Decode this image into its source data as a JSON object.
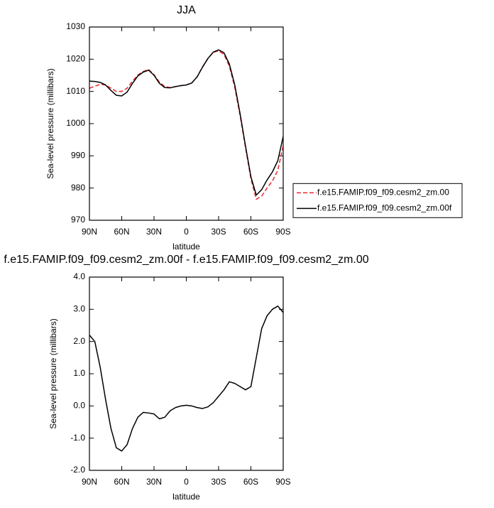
{
  "chart_data": [
    {
      "type": "line",
      "title": "JJA",
      "xlabel": "latitude",
      "ylabel": "Sea-level pressure (millibars)",
      "x": [
        90,
        85,
        80,
        75,
        70,
        65,
        60,
        55,
        50,
        45,
        40,
        35,
        30,
        25,
        20,
        15,
        10,
        5,
        0,
        -5,
        -10,
        -15,
        -20,
        -25,
        -30,
        -35,
        -40,
        -45,
        -50,
        -55,
        -60,
        -65,
        -70,
        -75,
        -80,
        -85,
        -90
      ],
      "xlim": [
        90,
        -90
      ],
      "xticks": [
        {
          "value": 90,
          "label": "90N"
        },
        {
          "value": 60,
          "label": "60N"
        },
        {
          "value": 30,
          "label": "30N"
        },
        0,
        {
          "value": -30,
          "label": "30S"
        },
        {
          "value": -60,
          "label": "60S"
        },
        {
          "value": -90,
          "label": "90S"
        }
      ],
      "ylim": [
        970,
        1030
      ],
      "yticks": [
        970,
        980,
        990,
        1000,
        1010,
        1020,
        1030
      ],
      "legend": "right",
      "series": [
        {
          "name": "f.e15.FAMIP.f09_f09.cesm2_zm.00",
          "color": "#e8282e",
          "line_style": "dashed",
          "values": [
            1011.0,
            1011.6,
            1012.2,
            1012.0,
            1011.0,
            1010.0,
            1010.0,
            1011.0,
            1013.2,
            1015.1,
            1016.2,
            1016.8,
            1015.2,
            1012.9,
            1011.5,
            1011.2,
            1011.5,
            1011.8,
            1012.0,
            1012.6,
            1014.5,
            1017.6,
            1020.2,
            1022.1,
            1022.6,
            1021.5,
            1017.8,
            1011.3,
            1002.4,
            992.5,
            982.9,
            976.5,
            977.5,
            980.0,
            982.2,
            985.5,
            993.1
          ]
        },
        {
          "name": "f.e15.FAMIP.f09_f09.cesm2_zm.00f",
          "color": "#000000",
          "line_style": "solid",
          "values": [
            1013.2,
            1013.1,
            1012.8,
            1012.0,
            1010.3,
            1008.8,
            1008.6,
            1009.8,
            1012.5,
            1014.8,
            1016.0,
            1016.6,
            1015.0,
            1012.5,
            1011.2,
            1011.1,
            1011.5,
            1011.8,
            1012.0,
            1012.6,
            1014.5,
            1017.5,
            1020.2,
            1022.2,
            1022.9,
            1022.0,
            1018.5,
            1012.0,
            1003.0,
            993.0,
            983.5,
            977.8,
            979.5,
            982.5,
            985.0,
            988.5,
            996.0
          ]
        }
      ]
    },
    {
      "type": "line",
      "title": "f.e15.FAMIP.f09_f09.cesm2_zm.00f - f.e15.FAMIP.f09_f09.cesm2_zm.00",
      "xlabel": "latitude",
      "ylabel": "Sea-level pressure (millibars)",
      "x": [
        90,
        85,
        80,
        75,
        70,
        65,
        60,
        55,
        50,
        45,
        40,
        35,
        30,
        25,
        20,
        15,
        10,
        5,
        0,
        -5,
        -10,
        -15,
        -20,
        -25,
        -30,
        -35,
        -40,
        -45,
        -50,
        -55,
        -60,
        -65,
        -70,
        -75,
        -80,
        -85,
        -90
      ],
      "xlim": [
        90,
        -90
      ],
      "xticks": [
        {
          "value": 90,
          "label": "90N"
        },
        {
          "value": 60,
          "label": "60N"
        },
        {
          "value": 30,
          "label": "30N"
        },
        0,
        {
          "value": -30,
          "label": "30S"
        },
        {
          "value": -60,
          "label": "60S"
        },
        {
          "value": -90,
          "label": "90S"
        }
      ],
      "ylim": [
        -2,
        4
      ],
      "yticks": [
        {
          "value": -2,
          "label": "-2.0"
        },
        {
          "value": -1,
          "label": "-1.0"
        },
        {
          "value": 0,
          "label": "0.0"
        },
        {
          "value": 1,
          "label": "1.0"
        },
        {
          "value": 2,
          "label": "2.0"
        },
        {
          "value": 3,
          "label": "3.0"
        },
        {
          "value": 4,
          "label": "4.0"
        }
      ],
      "series": [
        {
          "color": "#000000",
          "line_style": "solid",
          "values": [
            2.2,
            2.0,
            1.2,
            0.2,
            -0.7,
            -1.3,
            -1.4,
            -1.2,
            -0.7,
            -0.35,
            -0.2,
            -0.22,
            -0.25,
            -0.4,
            -0.35,
            -0.15,
            -0.05,
            0.0,
            0.02,
            0.0,
            -0.05,
            -0.08,
            -0.03,
            0.1,
            0.3,
            0.5,
            0.75,
            0.7,
            0.6,
            0.5,
            0.6,
            1.5,
            2.4,
            2.8,
            3.0,
            3.1,
            2.9
          ]
        }
      ]
    }
  ]
}
